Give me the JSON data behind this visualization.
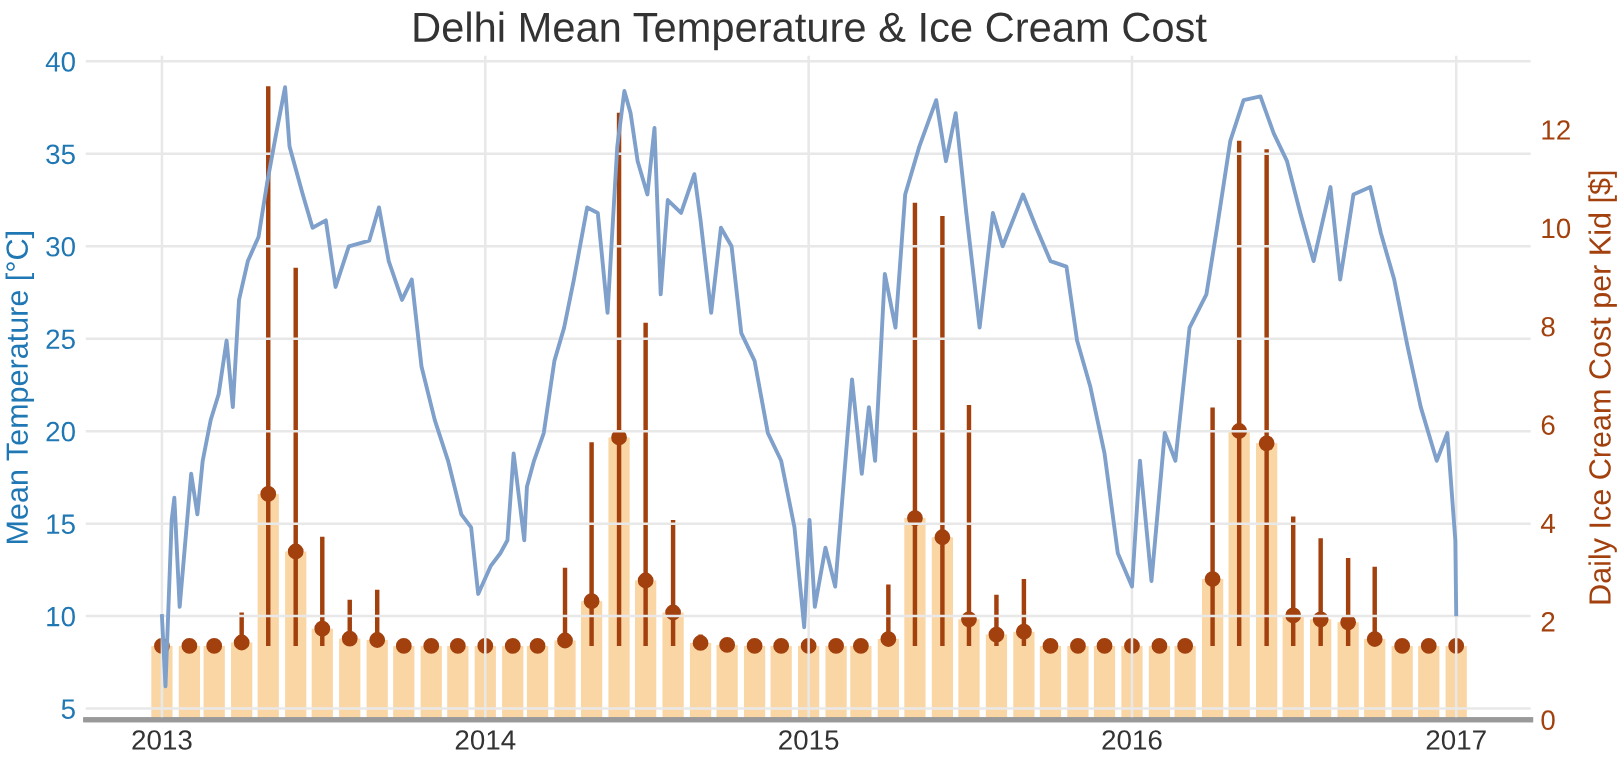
{
  "chart_data": {
    "type": "line",
    "title": "Delhi Mean Temperature & Ice Cream Cost",
    "ylabel": "Mean Temperature [°C]",
    "y2label": "Daily Ice Cream Cost per Kid [$]",
    "xlim": [
      "2012-10-07",
      "2017-03-26"
    ],
    "xticks": [
      "2013",
      "2014",
      "2015",
      "2016",
      "2017"
    ],
    "ylim": [
      4.4,
      40.3
    ],
    "yticks": [
      5,
      10,
      15,
      20,
      25,
      30,
      35,
      40
    ],
    "y2lim": [
      0,
      13.5
    ],
    "y2ticks": [
      0,
      2,
      4,
      6,
      8,
      10,
      12
    ],
    "grid": true,
    "legend": false,
    "series": [
      {
        "type": "bar",
        "axis": "y2",
        "color": "#fbd6a5",
        "x": [
          "2013-01",
          "2013-02",
          "2013-03",
          "2013-04",
          "2013-05",
          "2013-06",
          "2013-07",
          "2013-08",
          "2013-09",
          "2013-10",
          "2013-11",
          "2013-12",
          "2014-01",
          "2014-02",
          "2014-03",
          "2014-04",
          "2014-05",
          "2014-06",
          "2014-07",
          "2014-08",
          "2014-09",
          "2014-10",
          "2014-11",
          "2014-12",
          "2015-01",
          "2015-02",
          "2015-03",
          "2015-04",
          "2015-05",
          "2015-06",
          "2015-07",
          "2015-08",
          "2015-09",
          "2015-10",
          "2015-11",
          "2015-12",
          "2016-01",
          "2016-02",
          "2016-03",
          "2016-04",
          "2016-05",
          "2016-06",
          "2016-07",
          "2016-08",
          "2016-09",
          "2016-10",
          "2016-11",
          "2016-12",
          "2017-01"
        ],
        "values": [
          1.5,
          1.5,
          1.5,
          1.57,
          4.59,
          3.42,
          1.85,
          1.65,
          1.62,
          1.5,
          1.5,
          1.5,
          1.5,
          1.5,
          1.5,
          1.61,
          2.41,
          5.74,
          2.83,
          2.18,
          1.56,
          1.52,
          1.5,
          1.5,
          1.5,
          1.5,
          1.5,
          1.64,
          4.1,
          3.71,
          2.04,
          1.73,
          1.79,
          1.5,
          1.5,
          1.5,
          1.5,
          1.5,
          1.5,
          2.86,
          5.87,
          5.62,
          2.12,
          2.04,
          1.98,
          1.64,
          1.5,
          1.5,
          1.5
        ]
      },
      {
        "axis": "y",
        "color": "#7fa0cb",
        "x": [
          "2013-01-01",
          "2013-01-05",
          "2013-01-12",
          "2013-01-15",
          "2013-01-21",
          "2013-01-25",
          "2013-02-03",
          "2013-02-10",
          "2013-02-16",
          "2013-02-25",
          "2013-03-06",
          "2013-03-15",
          "2013-03-22",
          "2013-03-29",
          "2013-04-08",
          "2013-04-20",
          "2013-04-30",
          "2013-05-10",
          "2013-05-20",
          "2013-05-25",
          "2013-06-09",
          "2013-06-20",
          "2013-07-05",
          "2013-07-16",
          "2013-07-31",
          "2013-08-23",
          "2013-09-03",
          "2013-09-14",
          "2013-09-29",
          "2013-10-10",
          "2013-10-21",
          "2013-11-05",
          "2013-11-20",
          "2013-12-05",
          "2013-12-16",
          "2013-12-24",
          "2014-01-07",
          "2014-01-18",
          "2014-01-26",
          "2014-02-02",
          "2014-02-14",
          "2014-02-17",
          "2014-02-25",
          "2014-03-08",
          "2014-03-20",
          "2014-03-31",
          "2014-04-11",
          "2014-04-26",
          "2014-05-08",
          "2014-05-19",
          "2014-05-30",
          "2014-06-07",
          "2014-06-14",
          "2014-06-22",
          "2014-07-03",
          "2014-07-11",
          "2014-07-18",
          "2014-07-26",
          "2014-08-10",
          "2014-08-25",
          "2014-09-01",
          "2014-09-13",
          "2014-09-24",
          "2014-10-06",
          "2014-10-17",
          "2014-11-01",
          "2014-11-16",
          "2014-12-01",
          "2014-12-16",
          "2014-12-27",
          "2015-01-02",
          "2015-01-08",
          "2015-01-20",
          "2015-01-31",
          "2015-02-19",
          "2015-03-02",
          "2015-03-10",
          "2015-03-17",
          "2015-03-28",
          "2015-04-09",
          "2015-04-20",
          "2015-05-06",
          "2015-05-25",
          "2015-06-05",
          "2015-06-16",
          "2015-06-28",
          "2015-07-13",
          "2015-07-28",
          "2015-08-08",
          "2015-08-31",
          "2015-09-15",
          "2015-10-01",
          "2015-10-19",
          "2015-10-31",
          "2015-11-15",
          "2015-12-01",
          "2015-12-16",
          "2016-01-01",
          "2016-01-10",
          "2016-01-23",
          "2016-02-07",
          "2016-02-19",
          "2016-03-06",
          "2016-03-25",
          "2016-04-06",
          "2016-04-21",
          "2016-05-06",
          "2016-05-25",
          "2016-06-09",
          "2016-06-24",
          "2016-07-09",
          "2016-07-24",
          "2016-08-12",
          "2016-08-23",
          "2016-09-07",
          "2016-09-26",
          "2016-10-08",
          "2016-10-23",
          "2016-11-07",
          "2016-11-22",
          "2016-12-10",
          "2016-12-22",
          "2016-12-31",
          "2017-01-01"
        ],
        "values": [
          10.0,
          6.2,
          15.2,
          16.4,
          10.5,
          12.7,
          17.7,
          15.5,
          18.4,
          20.6,
          22.0,
          24.9,
          21.3,
          27.1,
          29.2,
          30.5,
          33.5,
          36.1,
          38.6,
          35.4,
          32.8,
          31.0,
          31.4,
          27.8,
          30.0,
          30.3,
          32.1,
          29.2,
          27.1,
          28.2,
          23.5,
          20.6,
          18.4,
          15.5,
          14.8,
          11.2,
          12.7,
          13.4,
          14.1,
          18.8,
          14.1,
          17.0,
          18.4,
          19.9,
          23.8,
          25.6,
          28.2,
          32.1,
          31.8,
          26.4,
          35.4,
          38.4,
          37.2,
          34.6,
          32.8,
          36.4,
          27.4,
          32.5,
          31.8,
          33.9,
          31.4,
          26.4,
          31.0,
          30.0,
          25.3,
          23.8,
          19.9,
          18.4,
          14.8,
          9.4,
          15.2,
          10.5,
          13.7,
          11.6,
          22.8,
          17.7,
          21.3,
          18.4,
          28.5,
          25.6,
          32.8,
          35.4,
          37.9,
          34.6,
          37.2,
          31.8,
          25.6,
          31.8,
          30.0,
          32.8,
          31.0,
          29.2,
          28.9,
          24.9,
          22.4,
          18.8,
          13.4,
          11.6,
          18.4,
          11.9,
          19.9,
          18.4,
          25.6,
          27.4,
          31.0,
          35.7,
          37.9,
          38.1,
          36.1,
          34.6,
          31.8,
          29.2,
          33.2,
          28.2,
          32.8,
          33.2,
          30.7,
          28.2,
          24.6,
          21.3,
          18.4,
          19.9,
          14.1,
          10.1
        ],
        "line_style": "solid"
      },
      {
        "type": "scatter",
        "axis": "y2",
        "color": "#a3410e",
        "marker": "circle",
        "x": [
          "2013-01",
          "2013-02",
          "2013-03",
          "2013-04",
          "2013-05",
          "2013-06",
          "2013-07",
          "2013-08",
          "2013-09",
          "2013-10",
          "2013-11",
          "2013-12",
          "2014-01",
          "2014-02",
          "2014-03",
          "2014-04",
          "2014-05",
          "2014-06",
          "2014-07",
          "2014-08",
          "2014-09",
          "2014-10",
          "2014-11",
          "2014-12",
          "2015-01",
          "2015-02",
          "2015-03",
          "2015-04",
          "2015-05",
          "2015-06",
          "2015-07",
          "2015-08",
          "2015-09",
          "2015-10",
          "2015-11",
          "2015-12",
          "2016-01",
          "2016-02",
          "2016-03",
          "2016-04",
          "2016-05",
          "2016-06",
          "2016-07",
          "2016-08",
          "2016-09",
          "2016-10",
          "2016-11",
          "2016-12",
          "2017-01"
        ],
        "values": [
          1.5,
          1.5,
          1.5,
          1.57,
          4.59,
          3.42,
          1.85,
          1.65,
          1.62,
          1.5,
          1.5,
          1.5,
          1.5,
          1.5,
          1.5,
          1.61,
          2.41,
          5.74,
          2.83,
          2.18,
          1.56,
          1.52,
          1.5,
          1.5,
          1.5,
          1.5,
          1.5,
          1.64,
          4.1,
          3.71,
          2.04,
          1.73,
          1.79,
          1.5,
          1.5,
          1.5,
          1.5,
          1.5,
          1.5,
          2.86,
          5.87,
          5.62,
          2.12,
          2.04,
          1.98,
          1.64,
          1.5,
          1.5,
          1.5
        ],
        "errors": [
          null,
          null,
          null,
          [
            1.5,
            2.18
          ],
          [
            1.5,
            12.88
          ],
          [
            1.5,
            9.19
          ],
          [
            1.5,
            3.72
          ],
          [
            1.5,
            2.44
          ],
          [
            1.5,
            2.64
          ],
          null,
          null,
          null,
          null,
          null,
          null,
          [
            1.5,
            3.09
          ],
          [
            1.5,
            5.64
          ],
          [
            1.5,
            12.34
          ],
          [
            1.5,
            8.07
          ],
          [
            1.5,
            4.06
          ],
          [
            1.5,
            1.73
          ],
          null,
          null,
          null,
          null,
          null,
          null,
          [
            1.5,
            2.75
          ],
          [
            1.5,
            10.51
          ],
          [
            1.5,
            10.24
          ],
          [
            1.5,
            6.4
          ],
          [
            1.5,
            2.54
          ],
          [
            1.5,
            2.86
          ],
          null,
          null,
          null,
          null,
          null,
          null,
          [
            1.5,
            6.35
          ],
          [
            1.5,
            11.77
          ],
          [
            1.5,
            11.6
          ],
          [
            1.5,
            4.13
          ],
          [
            1.5,
            3.69
          ],
          [
            1.5,
            3.29
          ],
          [
            1.5,
            3.11
          ],
          null,
          null,
          null
        ]
      }
    ]
  }
}
